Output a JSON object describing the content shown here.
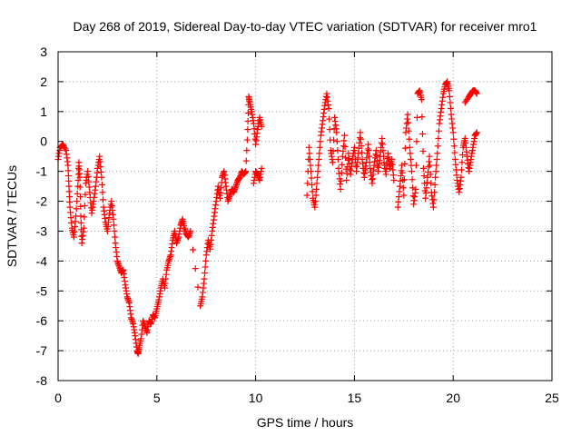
{
  "chart_data": {
    "type": "scatter",
    "title": "Day 268 of 2019, Sidereal Day-to-day VTEC variation (SDTVAR) for receiver mro1",
    "xlabel": "GPS time / hours",
    "ylabel": "SDTVAR / TECUs",
    "xlim": [
      0,
      25
    ],
    "ylim": [
      -8,
      3
    ],
    "xticks": [
      0,
      5,
      10,
      15,
      20,
      25
    ],
    "yticks": [
      -8,
      -7,
      -6,
      -5,
      -4,
      -3,
      -2,
      -1,
      0,
      1,
      2,
      3
    ],
    "grid": true,
    "marker": "+",
    "color": "#ff0000",
    "series": [
      {
        "name": "SDTVAR",
        "segments": [
          [
            [
              0.0,
              -0.6
            ],
            [
              0.1,
              -0.2
            ],
            [
              0.25,
              -0.1
            ],
            [
              0.4,
              -0.3
            ],
            [
              0.5,
              -0.8
            ],
            [
              0.55,
              -1.5
            ],
            [
              0.6,
              -2.2
            ],
            [
              0.7,
              -2.9
            ],
            [
              0.8,
              -3.2
            ],
            [
              0.9,
              -2.5
            ],
            [
              1.0,
              -1.5
            ],
            [
              1.05,
              -0.7
            ],
            [
              1.1,
              -1.2
            ],
            [
              1.15,
              -2.5
            ],
            [
              1.2,
              -3.4
            ],
            [
              1.3,
              -2.9
            ],
            [
              1.4,
              -1.4
            ],
            [
              1.5,
              -1.0
            ],
            [
              1.6,
              -1.7
            ],
            [
              1.7,
              -2.4
            ],
            [
              1.8,
              -2.0
            ],
            [
              1.9,
              -1.5
            ],
            [
              2.0,
              -0.9
            ],
            [
              2.1,
              -0.5
            ],
            [
              2.2,
              -1.2
            ],
            [
              2.3,
              -2.2
            ],
            [
              2.4,
              -2.7
            ],
            [
              2.5,
              -3.0
            ],
            [
              2.6,
              -2.4
            ],
            [
              2.7,
              -2.0
            ],
            [
              2.8,
              -2.6
            ],
            [
              2.9,
              -3.4
            ],
            [
              3.0,
              -4.0
            ],
            [
              3.1,
              -4.2
            ],
            [
              3.2,
              -4.4
            ],
            [
              3.3,
              -4.3
            ],
            [
              3.4,
              -4.8
            ],
            [
              3.5,
              -5.2
            ],
            [
              3.6,
              -5.4
            ],
            [
              3.7,
              -5.9
            ],
            [
              3.8,
              -6.1
            ],
            [
              3.9,
              -6.5
            ],
            [
              4.0,
              -7.0
            ],
            [
              4.05,
              -7.1
            ],
            [
              4.1,
              -6.9
            ],
            [
              4.2,
              -6.6
            ],
            [
              4.3,
              -6.0
            ],
            [
              4.4,
              -6.2
            ],
            [
              4.5,
              -6.4
            ],
            [
              4.6,
              -6.0
            ],
            [
              4.7,
              -6.1
            ],
            [
              4.8,
              -5.8
            ],
            [
              4.9,
              -5.9
            ],
            [
              5.0,
              -5.6
            ],
            [
              5.1,
              -5.3
            ],
            [
              5.2,
              -4.9
            ],
            [
              5.3,
              -4.6
            ],
            [
              5.4,
              -4.9
            ],
            [
              5.5,
              -4.3
            ],
            [
              5.6,
              -4.0
            ],
            [
              5.7,
              -3.8
            ],
            [
              5.8,
              -3.3
            ],
            [
              5.9,
              -3.0
            ],
            [
              6.0,
              -3.4
            ],
            [
              6.1,
              -3.2
            ],
            [
              6.2,
              -2.8
            ],
            [
              6.3,
              -2.6
            ],
            [
              6.4,
              -2.9
            ],
            [
              6.5,
              -3.1
            ],
            [
              6.6,
              -3.2
            ],
            [
              6.7,
              -3.0
            ],
            [
              7.2,
              -5.5
            ],
            [
              7.3,
              -5.2
            ],
            [
              7.4,
              -4.6
            ],
            [
              7.5,
              -3.8
            ],
            [
              7.6,
              -3.3
            ],
            [
              7.7,
              -3.6
            ],
            [
              7.8,
              -3.0
            ],
            [
              7.9,
              -2.5
            ],
            [
              8.0,
              -2.0
            ],
            [
              8.1,
              -1.5
            ],
            [
              8.2,
              -1.9
            ],
            [
              8.3,
              -1.2
            ],
            [
              8.4,
              -1.0
            ],
            [
              8.5,
              -1.5
            ],
            [
              8.6,
              -2.0
            ],
            [
              8.7,
              -1.8
            ],
            [
              8.8,
              -1.6
            ],
            [
              8.9,
              -1.7
            ],
            [
              9.0,
              -1.5
            ],
            [
              9.1,
              -1.3
            ],
            [
              9.2,
              -1.2
            ],
            [
              9.3,
              -1.0
            ],
            [
              9.4,
              -1.1
            ],
            [
              9.5,
              -1.0
            ],
            [
              9.6,
              0.4
            ],
            [
              9.65,
              1.5
            ],
            [
              9.7,
              1.3
            ],
            [
              9.8,
              1.0
            ],
            [
              9.9,
              0.6
            ],
            [
              10.0,
              -0.1
            ],
            [
              10.1,
              0.4
            ],
            [
              10.2,
              0.8
            ],
            [
              10.3,
              0.5
            ],
            [
              9.9,
              -1.4
            ],
            [
              10.0,
              -1.0
            ],
            [
              10.1,
              -1.1
            ],
            [
              10.2,
              -1.3
            ],
            [
              10.3,
              -0.9
            ]
          ],
          [
            [
              12.6,
              -1.8
            ],
            [
              12.7,
              -0.2
            ],
            [
              12.8,
              -1.0
            ],
            [
              12.9,
              -1.9
            ],
            [
              13.0,
              -2.2
            ],
            [
              13.1,
              -1.4
            ],
            [
              13.2,
              -0.6
            ],
            [
              13.3,
              0.2
            ],
            [
              13.4,
              0.7
            ],
            [
              13.5,
              1.2
            ],
            [
              13.6,
              1.6
            ],
            [
              13.7,
              1.1
            ],
            [
              13.8,
              -0.3
            ],
            [
              13.9,
              -0.7
            ],
            [
              14.0,
              0.8
            ],
            [
              14.1,
              0.3
            ],
            [
              14.2,
              -0.9
            ],
            [
              14.3,
              -1.6
            ],
            [
              14.4,
              -0.5
            ],
            [
              14.5,
              0.2
            ],
            [
              14.6,
              -1.3
            ],
            [
              14.7,
              -0.4
            ],
            [
              14.8,
              -1.1
            ],
            [
              14.9,
              -0.6
            ],
            [
              15.0,
              -0.2
            ],
            [
              15.1,
              -1.0
            ],
            [
              15.2,
              -0.4
            ],
            [
              15.3,
              0.3
            ],
            [
              15.4,
              -0.6
            ],
            [
              15.5,
              -1.2
            ],
            [
              15.6,
              -0.7
            ],
            [
              15.7,
              -0.1
            ],
            [
              15.8,
              -0.9
            ],
            [
              15.9,
              -1.4
            ],
            [
              16.0,
              -0.8
            ],
            [
              16.1,
              -0.3
            ],
            [
              16.2,
              -1.0
            ],
            [
              16.3,
              -0.5
            ],
            [
              16.4,
              0.1
            ],
            [
              16.5,
              -0.7
            ],
            [
              16.6,
              -1.1
            ],
            [
              16.7,
              -0.4
            ],
            [
              16.8,
              -0.9
            ],
            [
              16.9,
              -0.6
            ],
            [
              17.0,
              -1.3
            ]
          ],
          [
            [
              17.2,
              -2.2
            ],
            [
              17.3,
              -1.5
            ],
            [
              17.4,
              -0.8
            ],
            [
              17.5,
              -1.8
            ],
            [
              17.6,
              0.3
            ],
            [
              17.7,
              0.9
            ],
            [
              17.8,
              -0.2
            ],
            [
              17.9,
              -1.0
            ],
            [
              18.0,
              -2.1
            ],
            [
              18.1,
              -1.6
            ],
            [
              18.2,
              1.6
            ],
            [
              18.3,
              1.7
            ],
            [
              18.4,
              1.4
            ],
            [
              18.5,
              -0.9
            ],
            [
              18.6,
              -1.9
            ],
            [
              18.7,
              -1.2
            ],
            [
              18.8,
              -0.5
            ],
            [
              18.9,
              -1.7
            ],
            [
              19.0,
              -2.2
            ],
            [
              19.1,
              -1.2
            ],
            [
              19.2,
              -0.4
            ],
            [
              19.3,
              0.6
            ],
            [
              19.4,
              1.1
            ],
            [
              19.5,
              1.6
            ],
            [
              19.6,
              1.9
            ],
            [
              19.7,
              2.0
            ],
            [
              19.8,
              1.7
            ],
            [
              19.9,
              0.9
            ],
            [
              20.0,
              0.3
            ],
            [
              20.1,
              -0.6
            ],
            [
              20.2,
              -1.3
            ],
            [
              20.3,
              -1.7
            ],
            [
              20.4,
              -1.2
            ],
            [
              20.5,
              -0.2
            ],
            [
              20.6,
              0.1
            ],
            [
              20.7,
              -0.5
            ],
            [
              20.8,
              -1.0
            ],
            [
              20.9,
              -0.6
            ],
            [
              21.0,
              -0.2
            ],
            [
              21.1,
              0.2
            ],
            [
              21.2,
              0.3
            ],
            [
              20.6,
              1.3
            ],
            [
              20.8,
              1.5
            ],
            [
              20.9,
              1.6
            ],
            [
              21.0,
              1.7
            ],
            [
              21.1,
              1.7
            ],
            [
              21.2,
              1.6
            ]
          ]
        ]
      }
    ]
  }
}
